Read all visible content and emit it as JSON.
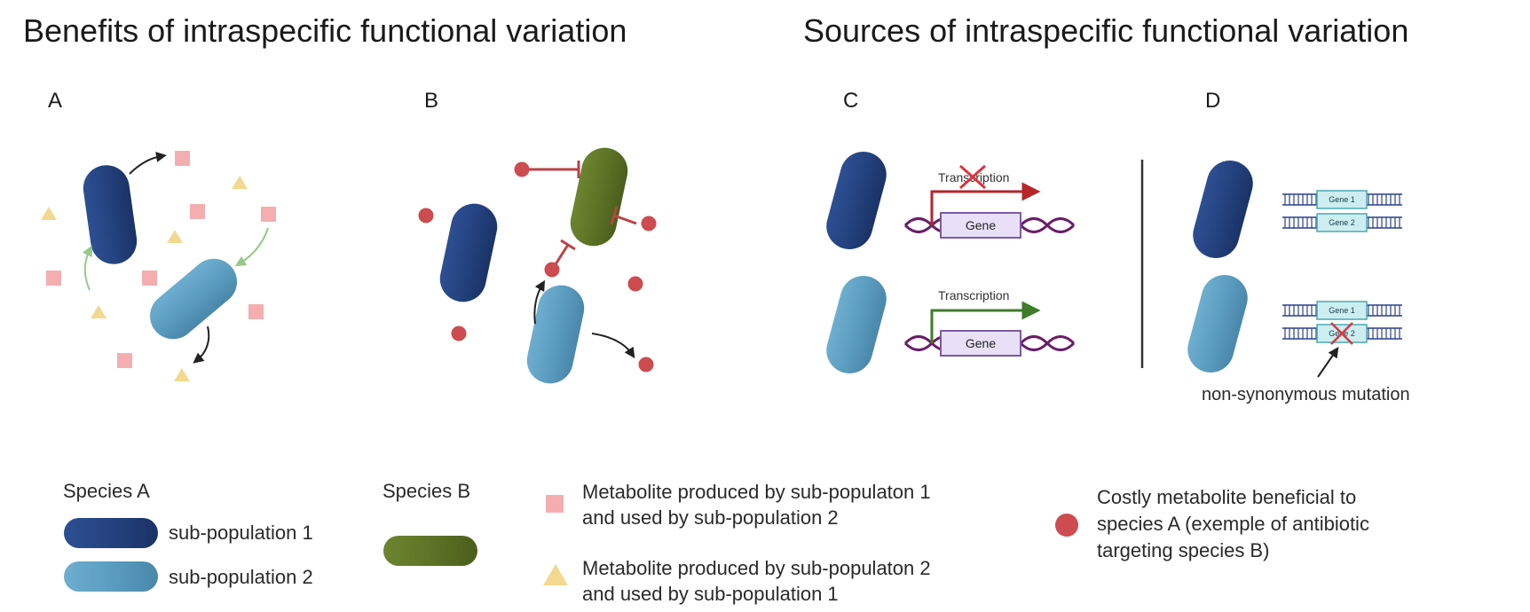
{
  "titles": {
    "benefits": "Benefits of intraspecific functional variation",
    "sources": "Sources of intraspecific functional variation"
  },
  "panels": {
    "a": "A",
    "b": "B",
    "c": "C",
    "d": "D"
  },
  "panel_c": {
    "transcription_top": "Transcription",
    "transcription_bottom": "Transcription",
    "gene_top": "Gene",
    "gene_bottom": "Gene"
  },
  "panel_d": {
    "gene1_top": "Gene 1",
    "gene2_top": "Gene 2",
    "gene1_bottom": "Gene 1",
    "gene2_bottom": "Gene 2",
    "mutation_label": "non-synonymous mutation"
  },
  "legend": {
    "species_a": "Species A",
    "subpop1": "sub-population 1",
    "subpop2": "sub-population 2",
    "species_b": "Species B",
    "metabolite1_line1": "Metabolite produced by sub-populaton 1",
    "metabolite1_line2": "and used by sub-population 2",
    "metabolite2_line1": "Metabolite produced by sub-populaton 2",
    "metabolite2_line2": "and used by sub-population 1",
    "costly_line1": "Costly metabolite beneficial to",
    "costly_line2": "species A (exemple of antibiotic",
    "costly_line3": "targeting species B)"
  },
  "colors": {
    "subpop1": "#24427f",
    "subpop2": "#5b9dc0",
    "species_b": "#5d7326",
    "square": "#f4aeb0",
    "triangle": "#f3d98f",
    "circle": "#cc4c4f",
    "arrow_green": "#96c98a",
    "inhibit_red": "#b84447",
    "transcription_red": "#b3262a",
    "transcription_green": "#3e7c2a",
    "dna": "#6a1d6a",
    "gene_box": "#e9e0f7"
  }
}
